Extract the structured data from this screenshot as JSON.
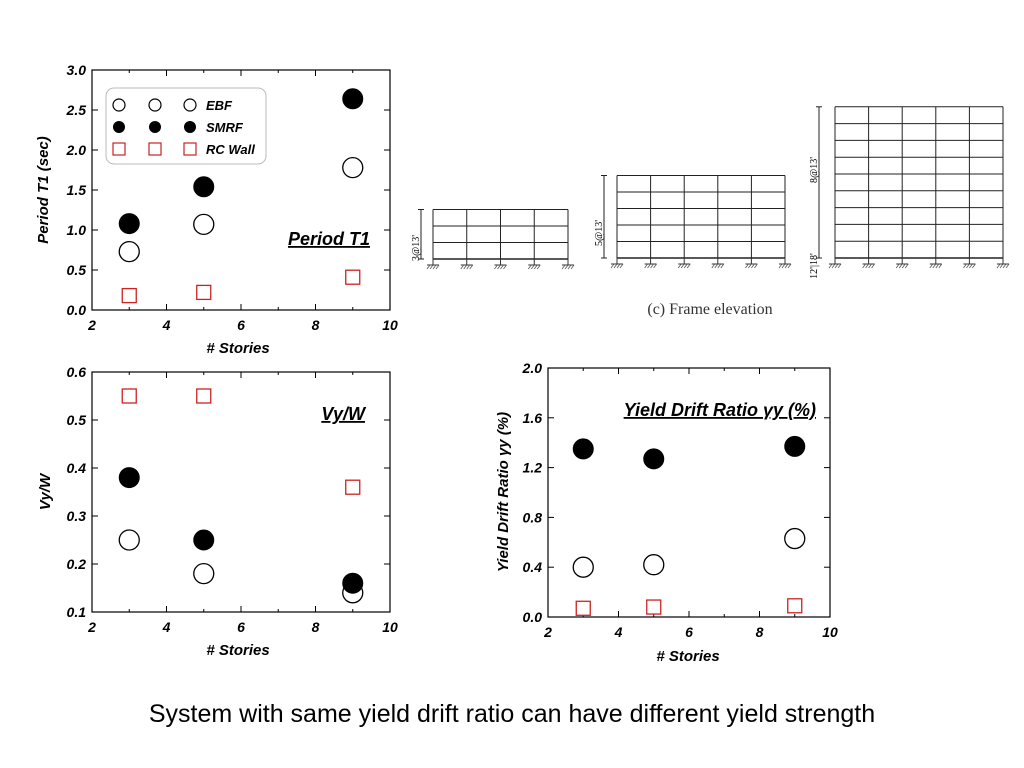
{
  "caption": "System with same yield drift ratio can have different yield strength",
  "colors": {
    "rc_wall": "#cc2222",
    "filled": "#000000",
    "axis": "#000000"
  },
  "chart_data": [
    {
      "id": "period",
      "type": "scatter",
      "title": "Period T1",
      "xlabel": "# Stories",
      "ylabel": "Period T1 (sec)",
      "xlim": [
        2,
        10
      ],
      "ylim": [
        0,
        3.0
      ],
      "xticks": [
        "2",
        "4",
        "6",
        "8",
        "10"
      ],
      "yticks": [
        "0.0",
        "0.5",
        "1.0",
        "1.5",
        "2.0",
        "2.5",
        "3.0"
      ],
      "legend_position": "top-left",
      "series": [
        {
          "name": "EBF",
          "marker": "open-circle",
          "x": [
            3,
            5,
            9
          ],
          "y": [
            0.73,
            1.07,
            1.78
          ]
        },
        {
          "name": "SMRF",
          "marker": "filled-circle",
          "x": [
            3,
            5,
            9
          ],
          "y": [
            1.08,
            1.54,
            2.64
          ]
        },
        {
          "name": "RC Wall",
          "marker": "open-square",
          "x": [
            3,
            5,
            9
          ],
          "y": [
            0.18,
            0.22,
            0.41
          ]
        }
      ]
    },
    {
      "id": "vyw",
      "type": "scatter",
      "title": "Vy/W",
      "xlabel": "# Stories",
      "ylabel": "Vy/W",
      "xlim": [
        2,
        10
      ],
      "ylim": [
        0.1,
        0.6
      ],
      "xticks": [
        "2",
        "4",
        "6",
        "8",
        "10"
      ],
      "yticks": [
        "0.1",
        "0.2",
        "0.3",
        "0.4",
        "0.5",
        "0.6"
      ],
      "series": [
        {
          "marker": "open-circle",
          "x": [
            3,
            5,
            9
          ],
          "y": [
            0.25,
            0.18,
            0.14
          ]
        },
        {
          "marker": "filled-circle",
          "x": [
            3,
            5,
            9
          ],
          "y": [
            0.38,
            0.25,
            0.16
          ]
        },
        {
          "marker": "open-square",
          "x": [
            3,
            5,
            9
          ],
          "y": [
            0.55,
            0.55,
            0.36
          ]
        }
      ]
    },
    {
      "id": "drift",
      "type": "scatter",
      "title": "Yield Drift Ratio γy (%)",
      "xlabel": "# Stories",
      "ylabel": "Yield Drift Ratio γy (%)",
      "xlim": [
        2,
        10
      ],
      "ylim": [
        0,
        2.0
      ],
      "xticks": [
        "2",
        "4",
        "6",
        "8",
        "10"
      ],
      "yticks": [
        "0.0",
        "0.4",
        "0.8",
        "1.2",
        "1.6",
        "2.0"
      ],
      "series": [
        {
          "marker": "open-circle",
          "x": [
            3,
            5,
            9
          ],
          "y": [
            0.4,
            0.42,
            0.63
          ]
        },
        {
          "marker": "filled-circle",
          "x": [
            3,
            5,
            9
          ],
          "y": [
            1.35,
            1.27,
            1.37
          ]
        },
        {
          "marker": "open-square",
          "x": [
            3,
            5,
            9
          ],
          "y": [
            0.07,
            0.08,
            0.09
          ]
        }
      ]
    }
  ],
  "frames": {
    "caption": "(c) Frame elevation",
    "items": [
      {
        "id": "frame3",
        "stories": 3,
        "bays": 4,
        "dim_label": "3@13'"
      },
      {
        "id": "frame5",
        "stories": 5,
        "bays": 5,
        "dim_label": "5@13'"
      },
      {
        "id": "frame9",
        "stories": 9,
        "bays": 5,
        "dim_label": "8@13'",
        "base_label": "12'|18'"
      }
    ]
  }
}
